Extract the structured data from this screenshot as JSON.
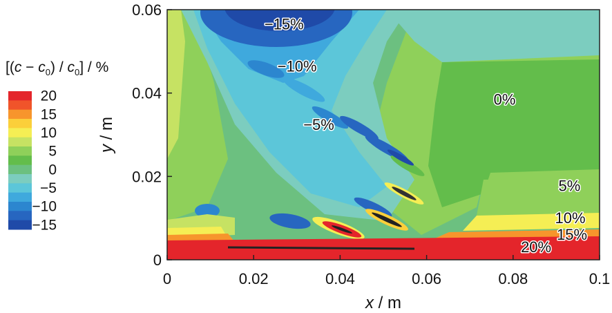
{
  "chart_data": {
    "type": "heatmap",
    "title": "",
    "xlabel_var": "x",
    "xlabel_unit": " / m",
    "ylabel_var": "y",
    "ylabel_unit": " / m",
    "xlim": [
      0,
      0.1
    ],
    "ylim": [
      0,
      0.06
    ],
    "x_ticks": [
      "0",
      "0.02",
      "0.04",
      "0.06",
      "0.08",
      "0.1"
    ],
    "x_tick_values": [
      0,
      0.02,
      0.04,
      0.06,
      0.08,
      0.1
    ],
    "y_ticks": [
      "0",
      "0.02",
      "0.04",
      "0.06"
    ],
    "y_tick_values": [
      0,
      0.02,
      0.04,
      0.06
    ],
    "colorbar": {
      "title_parts": [
        "[(",
        "c",
        " − ",
        "c",
        "0",
        ") / ",
        "c",
        "0",
        "] / %"
      ],
      "tick_labels": [
        "20",
        "15",
        "10",
        "5",
        "0",
        "−5",
        "−10",
        "−15"
      ],
      "tick_values": [
        20,
        15,
        10,
        5,
        0,
        -5,
        -10,
        -15
      ],
      "levels": [
        20,
        17.5,
        15,
        12.5,
        10,
        7.5,
        5,
        2.5,
        0,
        -2.5,
        -5,
        -7.5,
        -10,
        -12.5,
        -15
      ],
      "colors": [
        "#e4252b",
        "#f0542a",
        "#f7952c",
        "#fbcf3a",
        "#f5ee54",
        "#c6e263",
        "#8fd05a",
        "#63bd4b",
        "#6cc080",
        "#7ccdbf",
        "#5cc6d9",
        "#3fa9dd",
        "#2c86cf",
        "#2766c0",
        "#1f4aa8"
      ]
    },
    "annotations": [
      {
        "text": "−15%",
        "x": 0.0225,
        "y": 0.0553
      },
      {
        "text": "−10%",
        "x": 0.0255,
        "y": 0.0452
      },
      {
        "text": "−5%",
        "x": 0.0315,
        "y": 0.0312
      },
      {
        "text": "0%",
        "x": 0.0755,
        "y": 0.0372
      },
      {
        "text": "5%",
        "x": 0.0905,
        "y": 0.0165
      },
      {
        "text": "10%",
        "x": 0.0897,
        "y": 0.0088
      },
      {
        "text": "15%",
        "x": 0.0901,
        "y": 0.0048
      },
      {
        "text": "20%",
        "x": 0.0818,
        "y": 0.0018
      }
    ]
  }
}
